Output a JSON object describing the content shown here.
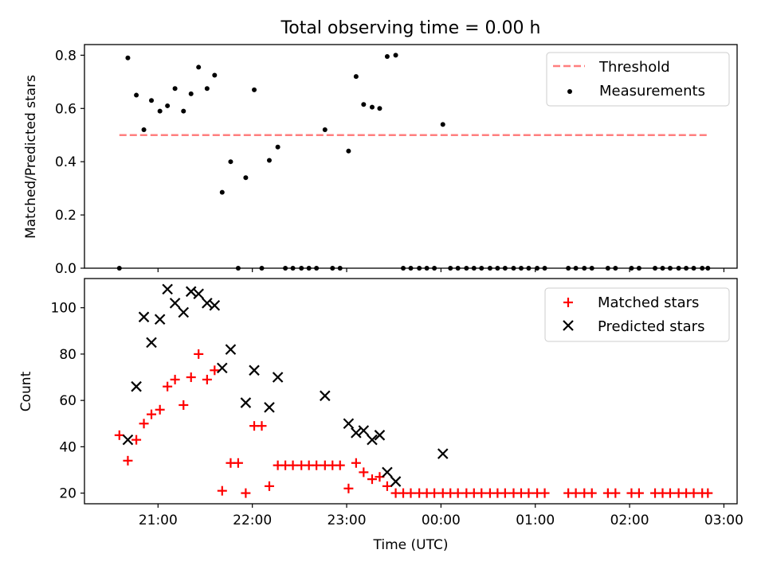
{
  "chart_data": {
    "title": "Total observing time = 0.00 h",
    "xlabel": "Time (UTC)",
    "xtick_labels": [
      "21:00",
      "22:00",
      "23:00",
      "00:00",
      "01:00",
      "02:00",
      "03:00"
    ],
    "x_unit": "hours after 20:00 UTC",
    "xlim": [
      0.22,
      7.14
    ],
    "panels": [
      {
        "type": "scatter",
        "ylabel": "Matched/Predicted stars",
        "ylim": [
          0,
          0.84
        ],
        "yticks": [
          0.0,
          0.2,
          0.4,
          0.6,
          0.8
        ],
        "yticks_fmt": 1,
        "grid": false,
        "legend": {
          "position": "top-right",
          "entries": [
            {
              "label": "Threshold",
              "kind": "dash",
              "color": "#ff7f7f"
            },
            {
              "label": "Measurements",
              "kind": "dot",
              "color": "#000000"
            }
          ]
        },
        "threshold": {
          "y": 0.5,
          "x_start": 0.59,
          "x_end": 6.83,
          "color": "#ff7f7f"
        },
        "series": [
          {
            "name": "Measurements",
            "marker": "dot",
            "color": "#000000",
            "x": [
              0.59,
              0.68,
              0.77,
              0.85,
              0.93,
              1.02,
              1.1,
              1.18,
              1.27,
              1.35,
              1.43,
              1.52,
              1.6,
              1.68,
              1.77,
              1.85,
              1.93,
              2.02,
              2.1,
              2.18,
              2.27,
              2.35,
              2.43,
              2.52,
              2.6,
              2.68,
              2.77,
              2.85,
              2.93,
              3.02,
              3.1,
              3.18,
              3.27,
              3.35,
              3.43,
              3.52,
              3.6,
              3.68,
              3.77,
              3.85,
              3.93,
              4.02,
              4.1,
              4.18,
              4.27,
              4.35,
              4.43,
              4.52,
              4.6,
              4.68,
              4.77,
              4.85,
              4.93,
              5.02,
              5.1,
              5.35,
              5.43,
              5.52,
              5.6,
              5.77,
              5.85,
              6.02,
              6.1,
              6.27,
              6.35,
              6.43,
              6.52,
              6.6,
              6.68,
              6.77,
              6.83
            ],
            "y": [
              0,
              0.79,
              0.65,
              0.52,
              0.63,
              0.59,
              0.61,
              0.675,
              0.59,
              0.655,
              0.755,
              0.675,
              0.725,
              0.285,
              0.4,
              0,
              0.34,
              0.67,
              0,
              0.405,
              0.455,
              0,
              0,
              0,
              0,
              0,
              0.52,
              0,
              0,
              0.44,
              0.72,
              0.615,
              0.605,
              0.6,
              0.795,
              0.8,
              0,
              0,
              0,
              0,
              0,
              0.54,
              0,
              0,
              0,
              0,
              0,
              0,
              0,
              0,
              0,
              0,
              0,
              0,
              0,
              0,
              0,
              0,
              0,
              0,
              0,
              0,
              0,
              0,
              0,
              0,
              0,
              0,
              0,
              0,
              0
            ]
          }
        ]
      },
      {
        "type": "scatter",
        "ylabel": "Count",
        "ylim": [
          15.4,
          112.6
        ],
        "yticks": [
          20,
          40,
          60,
          80,
          100
        ],
        "yticks_fmt": 0,
        "grid": false,
        "legend": {
          "position": "top-right",
          "entries": [
            {
              "label": "Matched stars",
              "kind": "plus",
              "color": "#ff0000"
            },
            {
              "label": "Predicted stars",
              "kind": "cross",
              "color": "#000000"
            }
          ]
        },
        "series": [
          {
            "name": "Matched stars",
            "marker": "plus",
            "color": "#ff0000",
            "x": [
              0.59,
              0.68,
              0.77,
              0.85,
              0.93,
              1.02,
              1.1,
              1.18,
              1.27,
              1.35,
              1.43,
              1.52,
              1.6,
              1.68,
              1.77,
              1.85,
              1.93,
              2.02,
              2.1,
              2.18,
              2.27,
              2.35,
              2.43,
              2.52,
              2.6,
              2.68,
              2.77,
              2.85,
              2.93,
              3.02,
              3.1,
              3.18,
              3.27,
              3.35,
              3.43,
              3.52,
              3.6,
              3.68,
              3.77,
              3.85,
              3.93,
              4.02,
              4.1,
              4.18,
              4.27,
              4.35,
              4.43,
              4.52,
              4.6,
              4.68,
              4.77,
              4.85,
              4.93,
              5.02,
              5.1,
              5.35,
              5.43,
              5.52,
              5.6,
              5.77,
              5.85,
              6.02,
              6.1,
              6.27,
              6.35,
              6.43,
              6.52,
              6.6,
              6.68,
              6.77,
              6.83
            ],
            "y": [
              45,
              34,
              43,
              50,
              54,
              56,
              66,
              69,
              58,
              70,
              80,
              69,
              73,
              21,
              33,
              33,
              20,
              49,
              49,
              23,
              32,
              32,
              32,
              32,
              32,
              32,
              32,
              32,
              32,
              22,
              33,
              29,
              26,
              27,
              23,
              20,
              20,
              20,
              20,
              20,
              20,
              20,
              20,
              20,
              20,
              20,
              20,
              20,
              20,
              20,
              20,
              20,
              20,
              20,
              20,
              20,
              20,
              20,
              20,
              20,
              20,
              20,
              20,
              20,
              20,
              20,
              20,
              20,
              20,
              20,
              20
            ]
          },
          {
            "name": "Predicted stars",
            "marker": "cross",
            "color": "#000000",
            "x": [
              0.68,
              0.77,
              0.85,
              0.93,
              1.02,
              1.1,
              1.18,
              1.27,
              1.35,
              1.43,
              1.52,
              1.6,
              1.68,
              1.77,
              1.93,
              2.02,
              2.18,
              2.27,
              2.77,
              3.02,
              3.1,
              3.18,
              3.27,
              3.35,
              3.43,
              3.52,
              4.02
            ],
            "y": [
              43,
              66,
              96,
              85,
              95,
              108,
              102,
              98,
              107,
              106,
              102,
              101,
              74,
              82,
              59,
              73,
              57,
              70,
              62,
              50,
              46,
              47,
              43,
              45,
              29,
              25,
              37
            ]
          }
        ]
      }
    ]
  }
}
